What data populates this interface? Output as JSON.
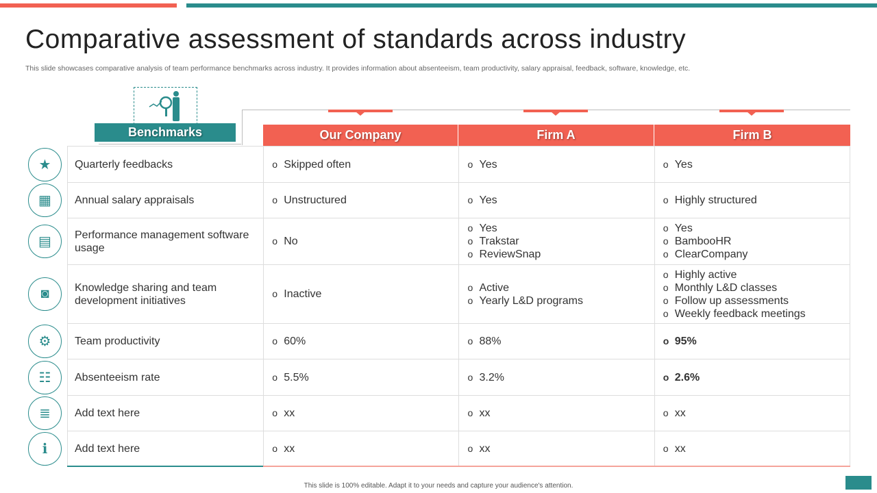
{
  "title": "Comparative assessment of standards across industry",
  "subtitle": "This slide showcases comparative analysis of team performance benchmarks across industry. It provides information about absenteeism, team productivity, salary appraisal, feedback, software, knowledge, etc.",
  "benchmarks_label": "Benchmarks",
  "columns": [
    "Our Company",
    "Firm A",
    "Firm B"
  ],
  "colors": {
    "accent": "#f26152",
    "teal": "#2a8c8c"
  },
  "rows": [
    {
      "label": "Quarterly feedbacks",
      "icon": "stars-thumbs-up-icon",
      "cells": [
        [
          "Skipped often"
        ],
        [
          "Yes"
        ],
        [
          "Yes"
        ]
      ]
    },
    {
      "label": "Annual salary appraisals",
      "icon": "calendar-money-icon",
      "cells": [
        [
          "Unstructured"
        ],
        [
          "Yes"
        ],
        [
          "Highly structured"
        ]
      ]
    },
    {
      "label": "Performance management software usage",
      "icon": "clipboard-icon",
      "cells": [
        [
          "No"
        ],
        [
          "Yes",
          "Trakstar",
          "ReviewSnap"
        ],
        [
          "Yes",
          "BambooHR",
          "ClearCompany"
        ]
      ]
    },
    {
      "label": "Knowledge sharing and team development initiatives",
      "icon": "browser-settings-icon",
      "cells": [
        [
          "Inactive"
        ],
        [
          "Active",
          "Yearly  L&D programs"
        ],
        [
          "Highly active",
          "Monthly  L&D classes",
          "Follow up assessments",
          "Weekly feedback meetings"
        ]
      ]
    },
    {
      "label": "Team productivity",
      "icon": "team-gear-icon",
      "cells": [
        [
          "60%"
        ],
        [
          "88%"
        ],
        [
          "95%"
        ]
      ],
      "bold_col": 2
    },
    {
      "label": "Absenteeism rate",
      "icon": "people-board-icon",
      "cells": [
        [
          "5.5%"
        ],
        [
          "3.2%"
        ],
        [
          "2.6%"
        ]
      ],
      "bold_col": 2
    },
    {
      "label": "Add text here",
      "icon": "document-icon",
      "cells": [
        [
          "xx"
        ],
        [
          "xx"
        ],
        [
          "xx"
        ]
      ]
    },
    {
      "label": "Add text here",
      "icon": "info-book-icon",
      "cells": [
        [
          "xx"
        ],
        [
          "xx"
        ],
        [
          "xx"
        ]
      ]
    }
  ],
  "footer": "This slide is 100% editable.  Adapt it to your needs and capture your audience's attention."
}
